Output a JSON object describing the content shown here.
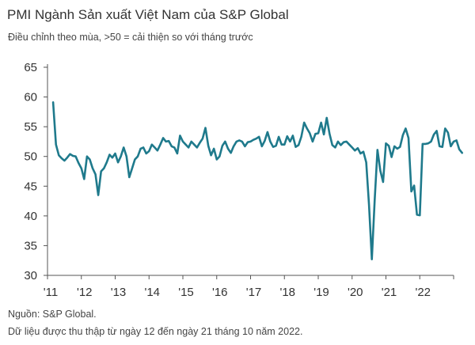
{
  "chart_data": {
    "type": "line",
    "title": "PMI Ngành Sản xuất Việt Nam của S&P Global",
    "subtitle": "Điều chỉnh theo mùa, >50 = cải thiện so với tháng trước",
    "xlabel": "",
    "ylabel": "",
    "ylim": [
      30,
      65
    ],
    "y_ticks": [
      30,
      35,
      40,
      45,
      50,
      55,
      60,
      65
    ],
    "x_ticks": [
      "'11",
      "'12",
      "'13",
      "'14",
      "'15",
      "'16",
      "'17",
      "'18",
      "'19",
      "'20",
      "'21",
      "'22"
    ],
    "grid": false,
    "series": [
      {
        "name": "PMI",
        "color": "#1f7a8c",
        "start": "2011-03",
        "values": [
          59.1,
          52.0,
          50.2,
          49.7,
          49.3,
          49.8,
          50.4,
          50.1,
          50.0,
          48.9,
          48.0,
          46.2,
          50.0,
          49.5,
          48.0,
          47.0,
          43.5,
          47.5,
          48.0,
          49.0,
          50.3,
          49.8,
          50.5,
          49.0,
          50.0,
          51.5,
          50.0,
          46.5,
          48.0,
          49.5,
          50.0,
          51.3,
          51.5,
          50.5,
          50.9,
          52.0,
          51.5,
          51.0,
          52.0,
          53.1,
          52.5,
          52.6,
          51.7,
          51.5,
          50.5,
          53.5,
          52.5,
          52.0,
          51.5,
          52.5,
          52.0,
          51.5,
          52.3,
          53.0,
          54.8,
          51.8,
          50.2,
          51.3,
          49.5,
          50.0,
          51.8,
          52.5,
          51.3,
          50.6,
          51.7,
          52.5,
          52.7,
          52.5,
          51.7,
          52.4,
          52.5,
          52.8,
          53.0,
          53.3,
          51.7,
          52.6,
          54.1,
          52.5,
          51.6,
          51.8,
          53.3,
          52.0,
          52.0,
          53.4,
          52.5,
          53.5,
          51.6,
          51.9,
          53.3,
          55.7,
          54.7,
          53.9,
          52.5,
          53.8,
          53.9,
          55.7,
          53.7,
          56.5,
          53.8,
          51.9,
          51.5,
          52.5,
          51.9,
          52.4,
          52.5,
          52.0,
          51.5,
          51.0,
          51.4,
          50.5,
          50.8,
          49.0,
          41.9,
          32.7,
          42.7,
          51.1,
          47.6,
          45.7,
          52.2,
          51.8,
          49.9,
          51.7,
          51.3,
          51.6,
          53.6,
          54.7,
          53.1,
          44.1,
          45.1,
          40.2,
          40.1,
          52.1,
          52.1,
          52.2,
          52.5,
          53.7,
          54.3,
          51.7,
          51.6,
          54.7,
          54.0,
          51.7,
          52.5,
          52.7,
          51.2,
          50.6
        ]
      }
    ],
    "source": "Nguồn: S&P Global.",
    "note": "Dữ liệu được thu thập từ ngày 12 đến ngày 21 tháng 10 năm 2022."
  }
}
